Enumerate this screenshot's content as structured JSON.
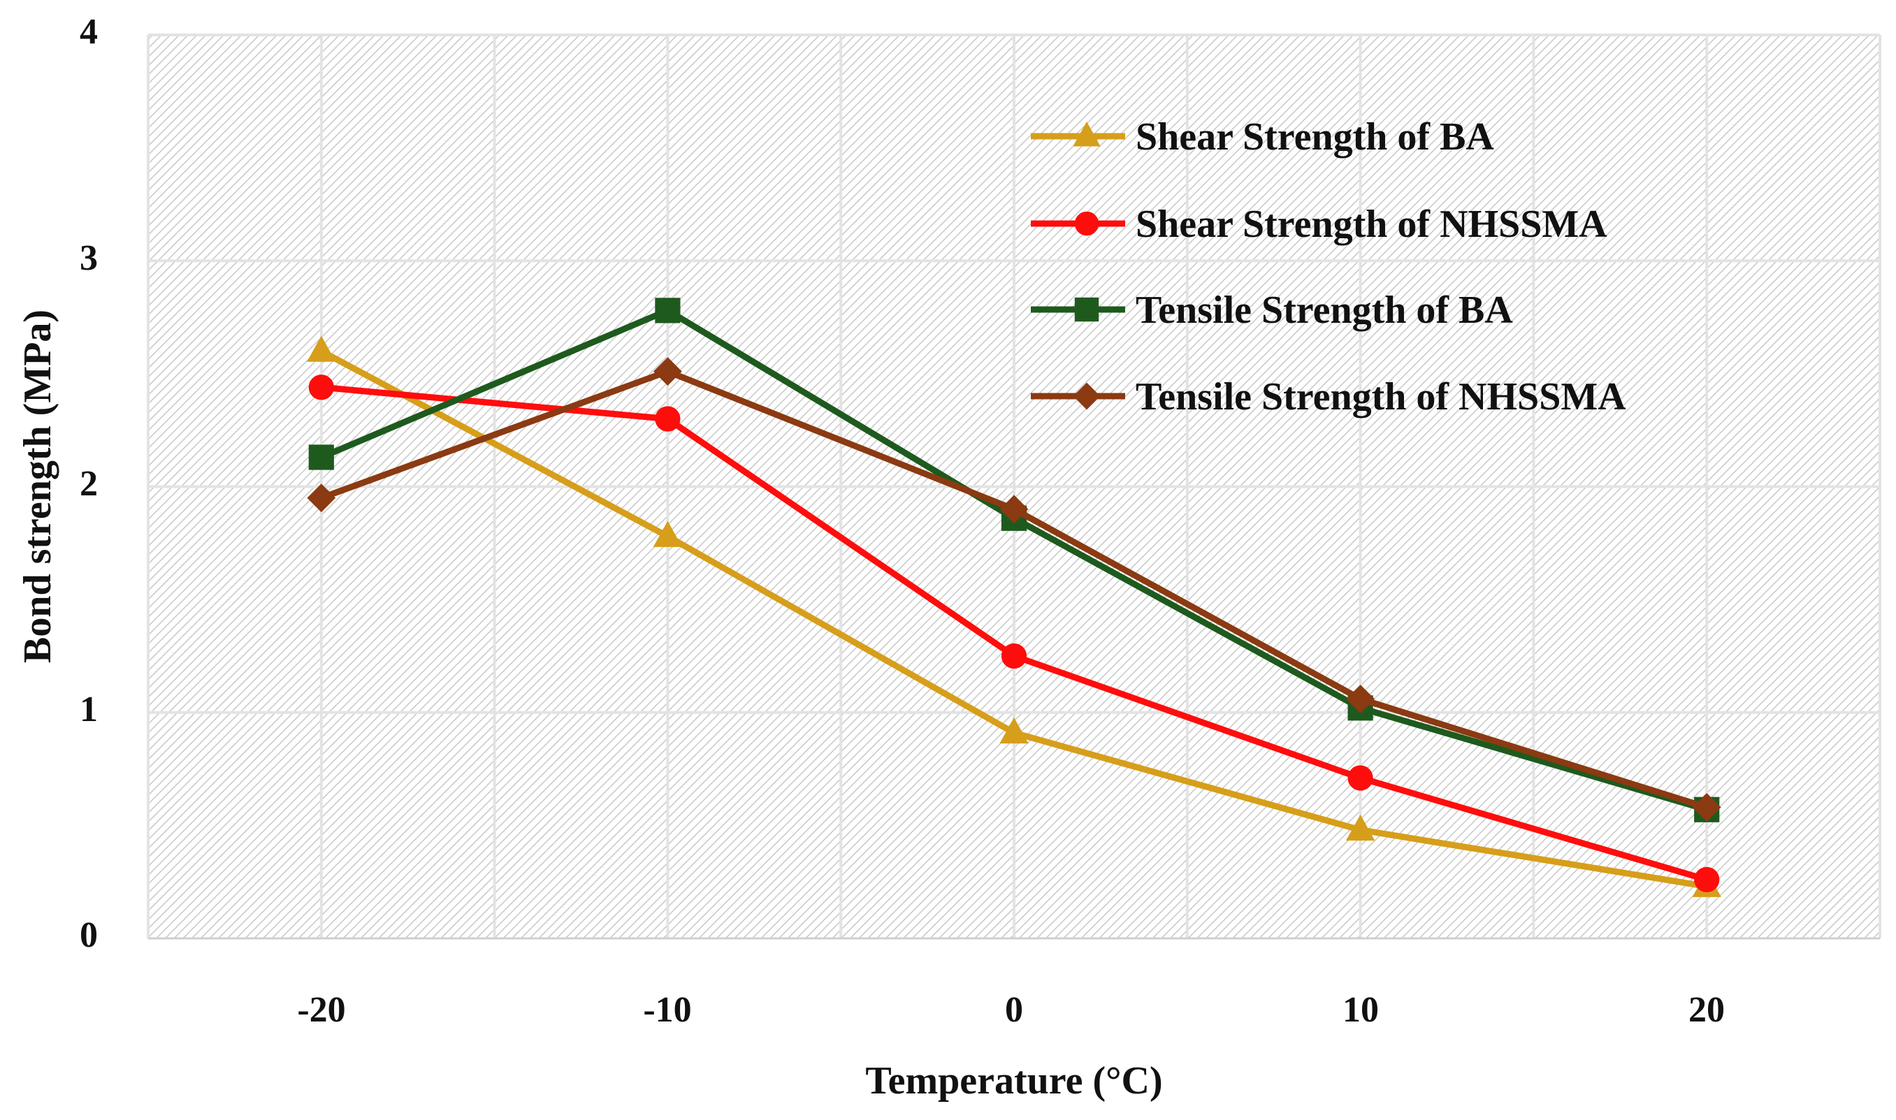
{
  "chart_data": {
    "type": "line",
    "title": "",
    "xlabel": "Temperature (°C)",
    "ylabel": "Bond strength (MPa)",
    "x": [
      -20,
      -10,
      0,
      10,
      20
    ],
    "x_tick_labels": [
      "-20",
      "-10",
      "0",
      "10",
      "20"
    ],
    "xlim": [
      -25,
      25
    ],
    "ylim": [
      0,
      4
    ],
    "y_ticks": [
      0,
      1,
      2,
      3,
      4
    ],
    "y_tick_labels": [
      "0",
      "1",
      "2",
      "3",
      "4"
    ],
    "grid": true,
    "legend_position": "top-right",
    "series": [
      {
        "name": "Shear Strength of BA",
        "color": "#D69E1A",
        "marker": "triangle",
        "values": [
          2.6,
          1.78,
          0.91,
          0.48,
          0.23
        ]
      },
      {
        "name": "Shear Strength of NHSSMA",
        "color": "#FF0D0D",
        "marker": "circle",
        "values": [
          2.44,
          2.3,
          1.25,
          0.71,
          0.26
        ]
      },
      {
        "name": "Tensile Strength of BA",
        "color": "#1E5A1E",
        "marker": "square",
        "values": [
          2.13,
          2.78,
          1.86,
          1.02,
          0.57
        ]
      },
      {
        "name": "Tensile Strength of NHSSMA",
        "color": "#8B3A12",
        "marker": "diamond",
        "values": [
          1.95,
          2.51,
          1.9,
          1.06,
          0.58
        ]
      }
    ]
  }
}
